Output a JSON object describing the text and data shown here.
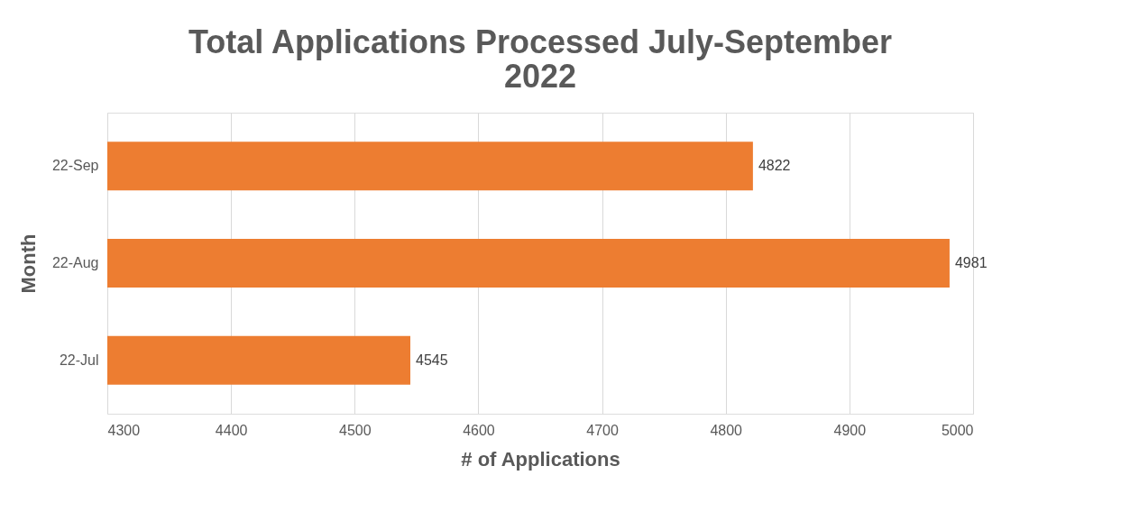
{
  "chart_data": {
    "type": "bar",
    "orientation": "horizontal",
    "title": "Total Applications Processed July-September 2022",
    "xlabel": "# of Applications",
    "ylabel": "Month",
    "categories": [
      "22-Sep",
      "22-Aug",
      "22-Jul"
    ],
    "values": [
      4822,
      4981,
      4545
    ],
    "color": "#ed7d31",
    "xlim": [
      4300,
      5000
    ],
    "xticks": [
      4300,
      4400,
      4500,
      4600,
      4700,
      4800,
      4900,
      5000
    ],
    "grid": "x",
    "data_labels": true
  }
}
